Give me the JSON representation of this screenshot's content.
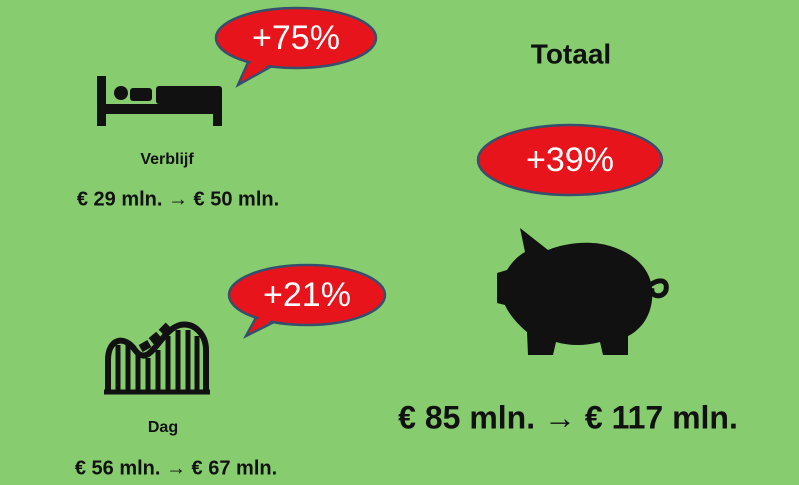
{
  "verblijf": {
    "change": "+75%",
    "label": "Verblijf",
    "amount": "€ 29 mln. → € 50 mln."
  },
  "dag": {
    "change": "+21%",
    "label": "Dag",
    "amount": "€ 56 mln. → € 67 mln."
  },
  "totaal": {
    "title": "Totaal",
    "change": "+39%",
    "amount": "€ 85 mln. → € 117 mln."
  }
}
